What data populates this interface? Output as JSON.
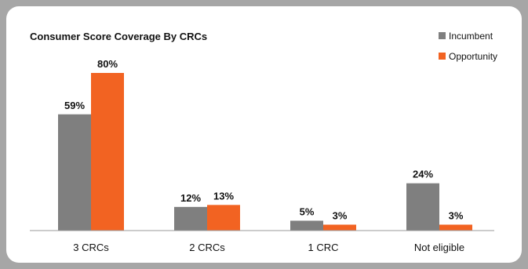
{
  "chart_data": {
    "type": "bar",
    "title": "Consumer Score Coverage By CRCs",
    "categories": [
      "3 CRCs",
      "2 CRCs",
      "1 CRC",
      "Not eligible"
    ],
    "series": [
      {
        "name": "Incumbent",
        "values": [
          59,
          12,
          5,
          24
        ],
        "labels": [
          "59%",
          "12%",
          "5%",
          "24%"
        ],
        "color": "#7f7f7f"
      },
      {
        "name": "Opportunity",
        "values": [
          80,
          13,
          3,
          3
        ],
        "labels": [
          "80%",
          "13%",
          "3%",
          "3%"
        ],
        "color": "#f26322"
      }
    ],
    "ylim": [
      0,
      80
    ],
    "unit": "%",
    "legend_position": "top-right",
    "grid": false
  },
  "colors": {
    "frame_background": "#a6a6a6",
    "card_background": "#ffffff",
    "axis_line": "#999999"
  }
}
